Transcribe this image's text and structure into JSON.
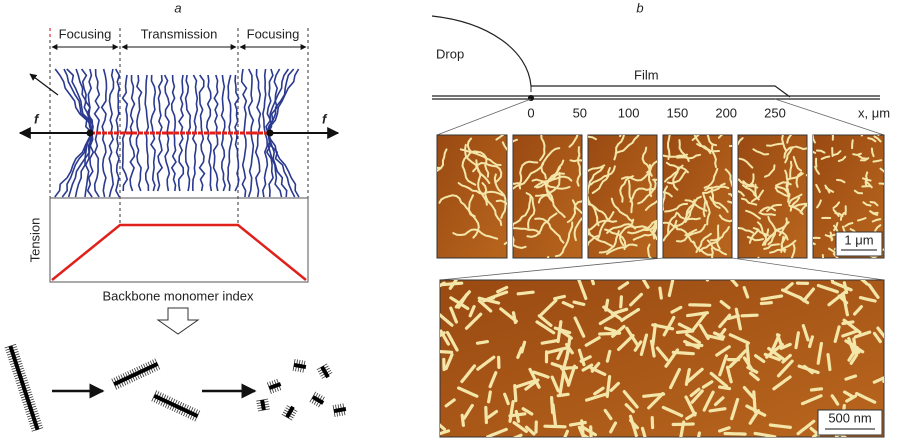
{
  "panel_a": {
    "label": "a",
    "regions": [
      "Focusing",
      "Transmission",
      "Focusing"
    ],
    "force_left": "f",
    "force_right": "f",
    "y_axis_label": "Tension",
    "x_axis_label": "Backbone monomer index"
  },
  "panel_b": {
    "label": "b",
    "drop_label": "Drop",
    "film_label": "Film",
    "axis_ticks": [
      0,
      50,
      100,
      150,
      200,
      250
    ],
    "axis_label": "x, μm",
    "scale_bar_small": "1 μm",
    "scale_bar_large": "500 nm"
  }
}
